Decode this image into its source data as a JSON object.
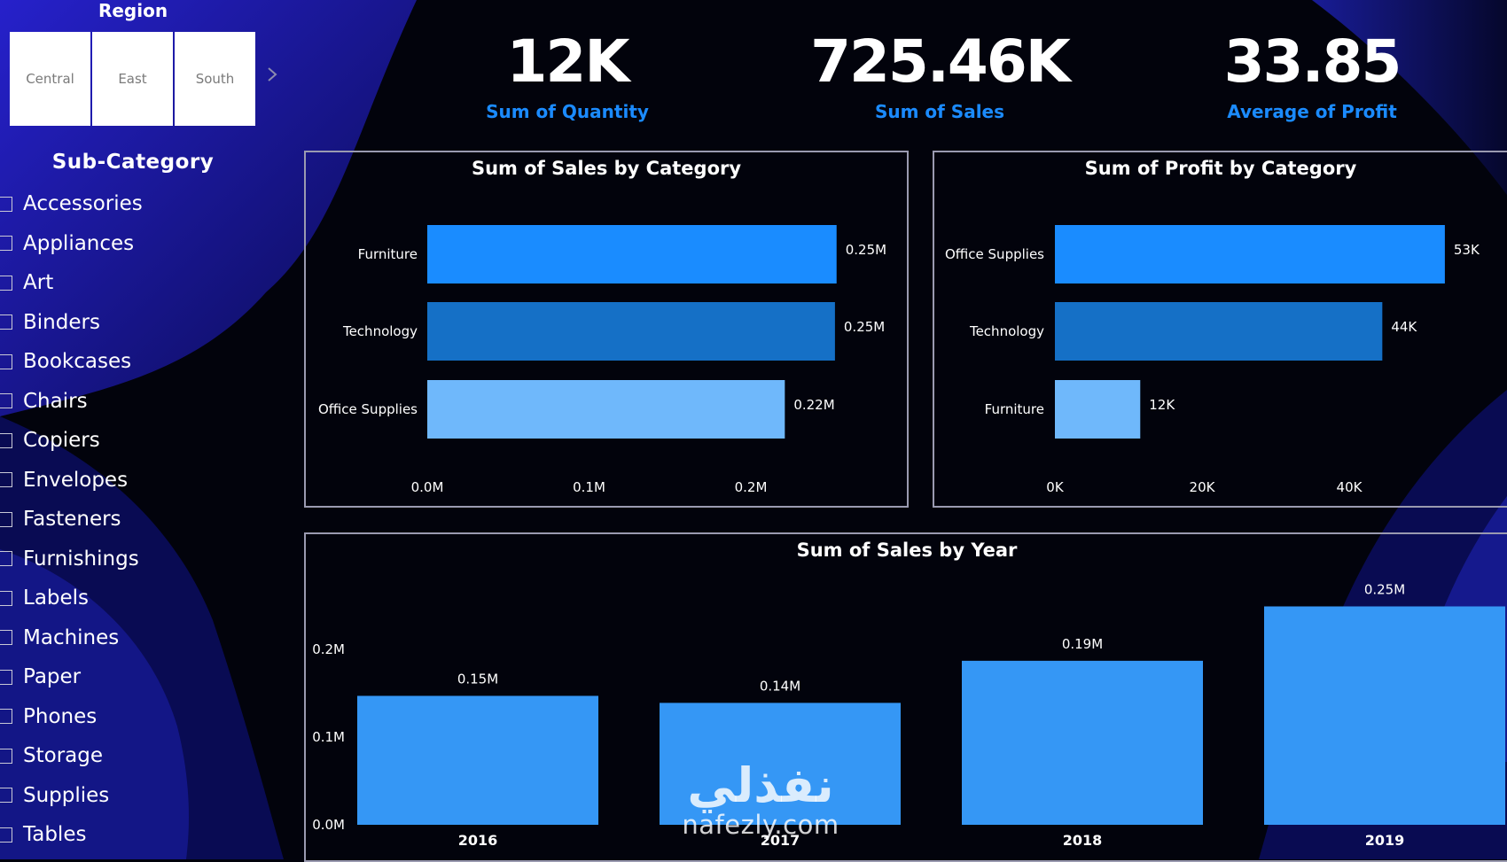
{
  "colors": {
    "background": "#02030c",
    "kpi_label": "#1b8bff",
    "bar_dark_blue": "#1570c6",
    "bar_mid_blue": "#1a8cff",
    "bar_light_blue": "#6fb8fb",
    "year_bar": "#3597f5"
  },
  "region_slicer": {
    "title": "Region",
    "tiles": [
      "Central",
      "East",
      "South"
    ],
    "next_icon": "chevron-right-icon"
  },
  "subcategory_slicer": {
    "title": "Sub-Category",
    "items": [
      "Accessories",
      "Appliances",
      "Art",
      "Binders",
      "Bookcases",
      "Chairs",
      "Copiers",
      "Envelopes",
      "Fasteners",
      "Furnishings",
      "Labels",
      "Machines",
      "Paper",
      "Phones",
      "Storage",
      "Supplies",
      "Tables"
    ]
  },
  "kpis": [
    {
      "value": "12K",
      "label": "Sum of Quantity"
    },
    {
      "value": "725.46K",
      "label": "Sum of Sales"
    },
    {
      "value": "33.85",
      "label": "Average of Profit"
    }
  ],
  "watermark": {
    "arabic": "نفذلي",
    "latin": "nafezly.com"
  },
  "chart_data": [
    {
      "type": "bar",
      "orientation": "horizontal",
      "title": "Sum of Sales by Category",
      "categories": [
        "Furniture",
        "Technology",
        "Office Supplies"
      ],
      "values": [
        0.253,
        0.252,
        0.221
      ],
      "data_labels": [
        "0.25M",
        "0.25M",
        "0.22M"
      ],
      "bar_colors": [
        "#1a8cff",
        "#1570c6",
        "#6fb8fb"
      ],
      "xticks": [
        0,
        0.1,
        0.2
      ],
      "xtick_labels": [
        "0.0M",
        "0.1M",
        "0.2M"
      ],
      "xlim": [
        0,
        0.3
      ],
      "grid": false
    },
    {
      "type": "bar",
      "orientation": "horizontal",
      "title": "Sum of Profit by Category",
      "categories": [
        "Office Supplies",
        "Technology",
        "Furniture"
      ],
      "values": [
        53,
        44.5,
        11.6
      ],
      "data_labels": [
        "53K",
        "44K",
        "12K"
      ],
      "bar_colors": [
        "#1a8cff",
        "#1570c6",
        "#6fb8fb"
      ],
      "xticks": [
        0,
        20,
        40
      ],
      "xtick_labels": [
        "0K",
        "20K",
        "40K"
      ],
      "xlim": [
        0,
        60
      ],
      "grid": false
    },
    {
      "type": "bar",
      "orientation": "vertical",
      "title": "Sum of Sales by Year",
      "categories": [
        "2016",
        "2017",
        "2018",
        "2019"
      ],
      "values": [
        0.147,
        0.139,
        0.187,
        0.249
      ],
      "data_labels": [
        "0.15M",
        "0.14M",
        "0.19M",
        "0.25M"
      ],
      "bar_color": "#3597f5",
      "yticks": [
        0,
        0.1,
        0.2
      ],
      "ytick_labels": [
        "0.0M",
        "0.1M",
        "0.2M"
      ],
      "ylim": [
        0,
        0.25
      ],
      "grid": false
    }
  ]
}
